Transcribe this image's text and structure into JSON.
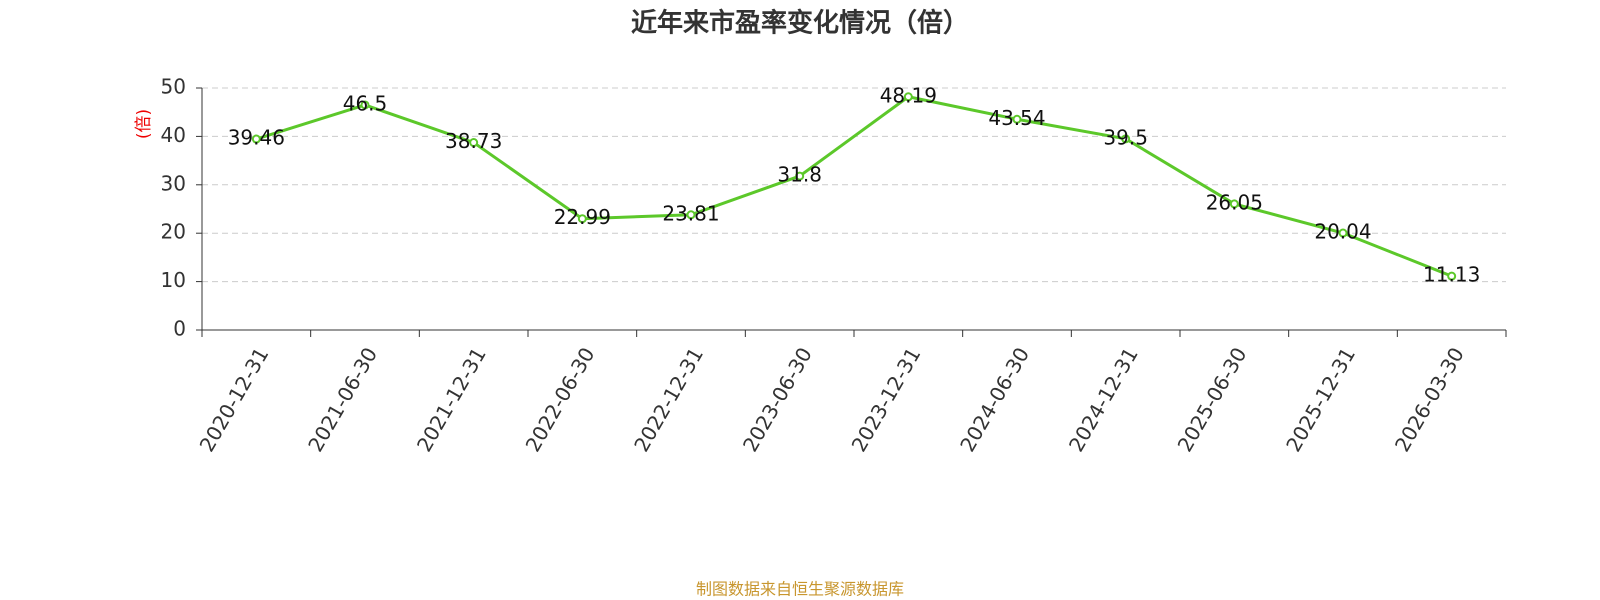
{
  "chart_data": {
    "type": "line",
    "title": "近年来市盈率变化情况（倍）",
    "y_label": "(倍)",
    "categories": [
      "2020-12-31",
      "2021-06-30",
      "2021-12-31",
      "2022-06-30",
      "2022-12-31",
      "2023-06-30",
      "2023-12-31",
      "2024-06-30",
      "2024-12-31",
      "2025-06-30",
      "2025-12-31",
      "2026-03-30"
    ],
    "values": [
      39.46,
      46.5,
      38.73,
      22.99,
      23.81,
      31.8,
      48.19,
      43.54,
      39.5,
      26.05,
      20.04,
      11.13
    ],
    "color": "#5cc82a",
    "ylim": [
      0,
      50
    ],
    "yticks": [
      0,
      10,
      20,
      30,
      40,
      50
    ],
    "grid": true,
    "source": "制图数据来自恒生聚源数据库"
  }
}
